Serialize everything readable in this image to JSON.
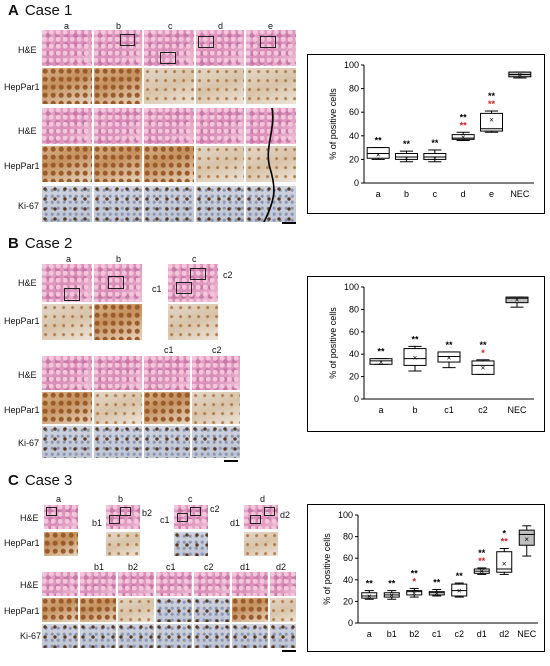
{
  "panels": {
    "A": {
      "letter": "A",
      "title": "Case 1",
      "cols": [
        "a",
        "b",
        "c",
        "d",
        "e"
      ],
      "rows": [
        "H&E",
        "HepPar1",
        "H&E",
        "HepPar1",
        "Ki-67"
      ]
    },
    "B": {
      "letter": "B",
      "title": "Case 2",
      "top_cols": [
        "a",
        "b",
        "c"
      ],
      "top_rows": [
        "H&E",
        "HepPar1"
      ],
      "c_sub": [
        "c1",
        "c2"
      ],
      "bottom_cols": [
        "c1",
        "c2"
      ],
      "bottom_rows": [
        "H&E",
        "HepPar1",
        "Ki-67"
      ]
    },
    "C": {
      "letter": "C",
      "title": "Case 3",
      "top_cols": [
        "a",
        "b",
        "c",
        "d"
      ],
      "top_rows": [
        "H&E",
        "HepPar1"
      ],
      "sub_labels": [
        "b1",
        "b2",
        "c1",
        "c2",
        "d1",
        "d2"
      ],
      "bottom_cols": [
        "b1",
        "b2",
        "c1",
        "c2",
        "d1",
        "d2"
      ],
      "bottom_rows": [
        "H&E",
        "HepPar1",
        "Ki-67"
      ]
    }
  },
  "colors": {
    "star_black": "#000000",
    "star_red": "#e0191e",
    "nec_box": "#bfbfbf",
    "box": "#ffffff"
  },
  "chart_data": [
    {
      "type": "box",
      "ylabel": "% of positive cells",
      "ylim": [
        0,
        100
      ],
      "yticks": [
        "0",
        "20",
        "40",
        "60",
        "80",
        "100"
      ],
      "categories": [
        "a",
        "b",
        "c",
        "d",
        "e",
        "NEC"
      ],
      "boxes": [
        {
          "cat": "a",
          "min": 20,
          "q1": 21,
          "median": 25,
          "q3": 30,
          "max": 30,
          "mean": 24,
          "sig": [
            "**"
          ],
          "sig_color": [
            "black"
          ]
        },
        {
          "cat": "b",
          "min": 18,
          "q1": 20,
          "median": 22,
          "q3": 25,
          "max": 27,
          "mean": 21,
          "sig": [
            "**"
          ],
          "sig_color": [
            "black"
          ]
        },
        {
          "cat": "c",
          "min": 18,
          "q1": 20,
          "median": 22,
          "q3": 25,
          "max": 28,
          "mean": 21,
          "sig": [
            "**"
          ],
          "sig_color": [
            "black"
          ]
        },
        {
          "cat": "d",
          "min": 36,
          "q1": 37,
          "median": 38,
          "q3": 41,
          "max": 43,
          "mean": 39,
          "sig": [
            "**",
            "**"
          ],
          "sig_color": [
            "black",
            "red"
          ]
        },
        {
          "cat": "e",
          "min": 43,
          "q1": 44,
          "median": 46,
          "q3": 59,
          "max": 61,
          "mean": 54,
          "sig": [
            "**",
            "**"
          ],
          "sig_color": [
            "black",
            "red"
          ]
        },
        {
          "cat": "NEC",
          "min": 89,
          "q1": 90,
          "median": 92,
          "q3": 94,
          "max": 94,
          "mean": 92,
          "sig": [],
          "sig_color": [],
          "fill": "gray"
        }
      ]
    },
    {
      "type": "box",
      "ylabel": "% of positive cells",
      "ylim": [
        0,
        100
      ],
      "yticks": [
        "0",
        "20",
        "40",
        "60",
        "80",
        "100"
      ],
      "categories": [
        "a",
        "b",
        "c1",
        "c2",
        "NEC"
      ],
      "boxes": [
        {
          "cat": "a",
          "min": 31,
          "q1": 31,
          "median": 34,
          "q3": 36,
          "max": 36,
          "mean": 33,
          "sig": [
            "**"
          ],
          "sig_color": [
            "black"
          ]
        },
        {
          "cat": "b",
          "min": 25,
          "q1": 30,
          "median": 36,
          "q3": 45,
          "max": 47,
          "mean": 37,
          "sig": [
            "**"
          ],
          "sig_color": [
            "black"
          ]
        },
        {
          "cat": "c1",
          "min": 28,
          "q1": 33,
          "median": 38,
          "q3": 42,
          "max": 42,
          "mean": 37,
          "sig": [
            "**"
          ],
          "sig_color": [
            "black"
          ]
        },
        {
          "cat": "c2",
          "min": 22,
          "q1": 22,
          "median": 30,
          "q3": 34,
          "max": 35,
          "mean": 28,
          "sig": [
            "**",
            "*"
          ],
          "sig_color": [
            "black",
            "red"
          ]
        },
        {
          "cat": "NEC",
          "min": 82,
          "q1": 86,
          "median": 90,
          "q3": 91,
          "max": 91,
          "mean": 89,
          "sig": [],
          "sig_color": [],
          "fill": "gray"
        }
      ]
    },
    {
      "type": "box",
      "ylabel": "% of positive cells",
      "ylim": [
        0,
        100
      ],
      "yticks": [
        "0",
        "20",
        "40",
        "60",
        "80",
        "100"
      ],
      "categories": [
        "a",
        "b1",
        "b2",
        "c1",
        "c2",
        "d1",
        "d2",
        "NEC"
      ],
      "boxes": [
        {
          "cat": "a",
          "min": 22,
          "q1": 23,
          "median": 25,
          "q3": 28,
          "max": 30,
          "mean": 25,
          "sig": [
            "**"
          ],
          "sig_color": [
            "black"
          ]
        },
        {
          "cat": "b1",
          "min": 22,
          "q1": 24,
          "median": 26,
          "q3": 28,
          "max": 30,
          "mean": 26,
          "sig": [
            "**"
          ],
          "sig_color": [
            "black"
          ]
        },
        {
          "cat": "b2",
          "min": 24,
          "q1": 26,
          "median": 29,
          "q3": 30,
          "max": 32,
          "mean": 28,
          "sig": [
            "**",
            "*"
          ],
          "sig_color": [
            "black",
            "red"
          ]
        },
        {
          "cat": "c1",
          "min": 25,
          "q1": 26,
          "median": 28,
          "q3": 29,
          "max": 31,
          "mean": 28,
          "sig": [
            "**"
          ],
          "sig_color": [
            "black"
          ]
        },
        {
          "cat": "c2",
          "min": 24,
          "q1": 25,
          "median": 30,
          "q3": 36,
          "max": 37,
          "mean": 30,
          "sig": [
            "**"
          ],
          "sig_color": [
            "black"
          ]
        },
        {
          "cat": "d1",
          "min": 45,
          "q1": 46,
          "median": 48,
          "q3": 50,
          "max": 51,
          "mean": 48,
          "sig": [
            "**",
            "**"
          ],
          "sig_color": [
            "black",
            "red"
          ]
        },
        {
          "cat": "d2",
          "min": 45,
          "q1": 47,
          "median": 50,
          "q3": 66,
          "max": 69,
          "mean": 55,
          "sig": [
            "*",
            "**"
          ],
          "sig_color": [
            "black",
            "red"
          ]
        },
        {
          "cat": "NEC",
          "min": 62,
          "q1": 72,
          "median": 82,
          "q3": 86,
          "max": 90,
          "mean": 78,
          "sig": [],
          "sig_color": [],
          "fill": "gray"
        }
      ]
    }
  ]
}
